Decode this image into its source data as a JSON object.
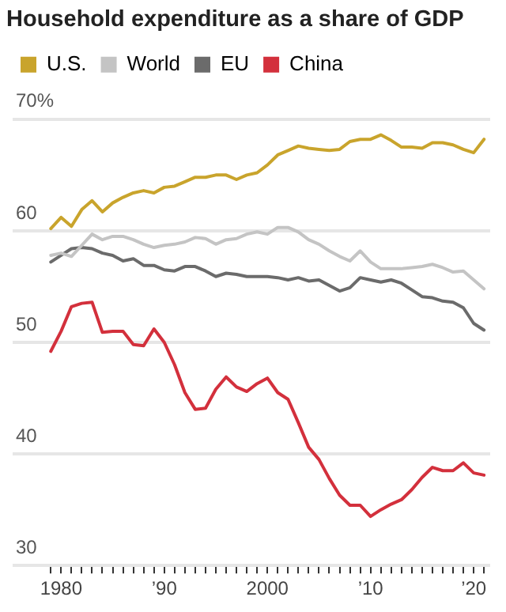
{
  "chart_data": {
    "type": "line",
    "title": "Household expenditure as a share of GDP",
    "legend": "top left",
    "grid": "y",
    "marker": "none",
    "line_style": "solid",
    "x": [
      1979,
      1980,
      1981,
      1982,
      1983,
      1984,
      1985,
      1986,
      1987,
      1988,
      1989,
      1990,
      1991,
      1992,
      1993,
      1994,
      1995,
      1996,
      1997,
      1998,
      1999,
      2000,
      2001,
      2002,
      2003,
      2004,
      2005,
      2006,
      2007,
      2008,
      2009,
      2010,
      2011,
      2012,
      2013,
      2014,
      2015,
      2016,
      2017,
      2018,
      2019,
      2020,
      2021
    ],
    "xlim": [
      1975.3,
      2021.6
    ],
    "xticks": [
      {
        "value": 1979,
        "label": null
      },
      {
        "value": 1980,
        "label": "1980"
      },
      {
        "value": 1981,
        "label": null
      },
      {
        "value": 1982,
        "label": null
      },
      {
        "value": 1983,
        "label": null
      },
      {
        "value": 1984,
        "label": null
      },
      {
        "value": 1985,
        "label": null
      },
      {
        "value": 1986,
        "label": null
      },
      {
        "value": 1987,
        "label": null
      },
      {
        "value": 1988,
        "label": null
      },
      {
        "value": 1989,
        "label": null
      },
      {
        "value": 1990,
        "label": "’90"
      },
      {
        "value": 1991,
        "label": null
      },
      {
        "value": 1992,
        "label": null
      },
      {
        "value": 1993,
        "label": null
      },
      {
        "value": 1994,
        "label": null
      },
      {
        "value": 1995,
        "label": null
      },
      {
        "value": 1996,
        "label": null
      },
      {
        "value": 1997,
        "label": null
      },
      {
        "value": 1998,
        "label": null
      },
      {
        "value": 1999,
        "label": null
      },
      {
        "value": 2000,
        "label": "2000"
      },
      {
        "value": 2001,
        "label": null
      },
      {
        "value": 2002,
        "label": null
      },
      {
        "value": 2003,
        "label": null
      },
      {
        "value": 2004,
        "label": null
      },
      {
        "value": 2005,
        "label": null
      },
      {
        "value": 2006,
        "label": null
      },
      {
        "value": 2007,
        "label": null
      },
      {
        "value": 2008,
        "label": null
      },
      {
        "value": 2009,
        "label": null
      },
      {
        "value": 2010,
        "label": "’10"
      },
      {
        "value": 2011,
        "label": null
      },
      {
        "value": 2012,
        "label": null
      },
      {
        "value": 2013,
        "label": null
      },
      {
        "value": 2014,
        "label": null
      },
      {
        "value": 2015,
        "label": null
      },
      {
        "value": 2016,
        "label": null
      },
      {
        "value": 2017,
        "label": null
      },
      {
        "value": 2018,
        "label": null
      },
      {
        "value": 2019,
        "label": null
      },
      {
        "value": 2020,
        "label": "’20"
      },
      {
        "value": 2021,
        "label": null
      }
    ],
    "ylim": [
      30,
      70
    ],
    "yticks": [
      30,
      40,
      50,
      60,
      {
        "value": 70,
        "label": "70%"
      }
    ],
    "series": [
      {
        "name": "U.S.",
        "color": "#c9a42c",
        "values": [
          60.2,
          61.2,
          60.4,
          61.9,
          62.7,
          61.7,
          62.5,
          63.0,
          63.4,
          63.6,
          63.4,
          63.9,
          64.0,
          64.4,
          64.8,
          64.8,
          65.0,
          65.0,
          64.6,
          65.0,
          65.2,
          65.9,
          66.8,
          67.2,
          67.6,
          67.4,
          67.3,
          67.2,
          67.3,
          68.0,
          68.2,
          68.2,
          68.6,
          68.1,
          67.5,
          67.5,
          67.4,
          67.9,
          67.9,
          67.7,
          67.3,
          67.0,
          68.2
        ]
      },
      {
        "name": "World",
        "color": "#c4c4c4",
        "values": [
          57.8,
          58.0,
          57.7,
          58.7,
          59.7,
          59.2,
          59.5,
          59.5,
          59.2,
          58.8,
          58.5,
          58.7,
          58.8,
          59.0,
          59.4,
          59.3,
          58.8,
          59.2,
          59.3,
          59.7,
          59.9,
          59.7,
          60.3,
          60.3,
          59.9,
          59.2,
          58.8,
          58.2,
          57.7,
          57.3,
          58.2,
          57.2,
          56.6,
          56.6,
          56.6,
          56.7,
          56.8,
          57.0,
          56.7,
          56.3,
          56.4,
          55.6,
          54.8
        ]
      },
      {
        "name": "EU",
        "color": "#6b6b6b",
        "values": [
          57.2,
          57.8,
          58.4,
          58.5,
          58.4,
          58.0,
          57.8,
          57.3,
          57.5,
          56.9,
          56.9,
          56.5,
          56.4,
          56.8,
          56.8,
          56.4,
          55.9,
          56.2,
          56.1,
          55.9,
          55.9,
          55.9,
          55.8,
          55.6,
          55.8,
          55.5,
          55.6,
          55.1,
          54.6,
          54.9,
          55.8,
          55.6,
          55.4,
          55.6,
          55.3,
          54.7,
          54.1,
          54.0,
          53.7,
          53.6,
          53.1,
          51.7,
          51.1
        ]
      },
      {
        "name": "China",
        "color": "#d3303c",
        "values": [
          49.2,
          51.0,
          53.2,
          53.5,
          53.6,
          50.9,
          51.0,
          51.0,
          49.8,
          49.7,
          51.2,
          50.0,
          48.0,
          45.5,
          44.0,
          44.1,
          45.8,
          46.9,
          46.0,
          45.6,
          46.3,
          46.8,
          45.5,
          44.9,
          42.8,
          40.6,
          39.5,
          37.8,
          36.3,
          35.4,
          35.4,
          34.4,
          35.0,
          35.5,
          35.9,
          36.8,
          37.9,
          38.8,
          38.5,
          38.5,
          39.2,
          38.3,
          38.1
        ]
      }
    ]
  }
}
